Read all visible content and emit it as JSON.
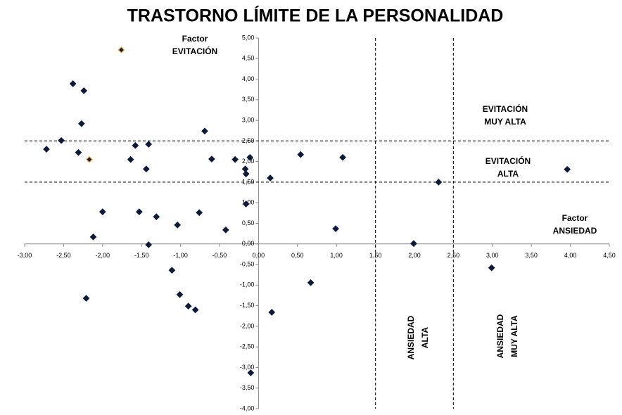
{
  "chart_data": {
    "type": "scatter",
    "title": "TRASTORNO LÍMITE DE LA PERSONALIDAD",
    "xlim": [
      -3,
      4.5
    ],
    "ylim": [
      -4,
      5
    ],
    "xticks": [
      {
        "value": -3,
        "label": "-3,00"
      },
      {
        "value": -2.5,
        "label": "-2,50"
      },
      {
        "value": -2,
        "label": "-2,00"
      },
      {
        "value": -1.5,
        "label": "-1,50"
      },
      {
        "value": -1,
        "label": "-1,00"
      },
      {
        "value": -0.5,
        "label": "-0,50"
      },
      {
        "value": 0,
        "label": "0,00"
      },
      {
        "value": 0.5,
        "label": "0,50"
      },
      {
        "value": 1,
        "label": "1,00"
      },
      {
        "value": 1.5,
        "label": "1,50"
      },
      {
        "value": 2,
        "label": "2,00"
      },
      {
        "value": 2.5,
        "label": "2,50"
      },
      {
        "value": 3,
        "label": "3,00"
      },
      {
        "value": 3.5,
        "label": "3,50"
      },
      {
        "value": 4,
        "label": "4,00"
      },
      {
        "value": 4.5,
        "label": "4,50"
      }
    ],
    "yticks": [
      {
        "value": 5,
        "label": "5,00"
      },
      {
        "value": 4.5,
        "label": "4,50"
      },
      {
        "value": 4,
        "label": "4,00"
      },
      {
        "value": 3.5,
        "label": "3,50"
      },
      {
        "value": 3,
        "label": "3,00"
      },
      {
        "value": 2.5,
        "label": "2,50"
      },
      {
        "value": 2,
        "label": "2,00"
      },
      {
        "value": 1.5,
        "label": "1,50"
      },
      {
        "value": 1,
        "label": "1,00"
      },
      {
        "value": 0.5,
        "label": "0,50"
      },
      {
        "value": 0,
        "label": "0,00"
      },
      {
        "value": -0.5,
        "label": "-0,50"
      },
      {
        "value": -1,
        "label": "-1,00"
      },
      {
        "value": -1.5,
        "label": "-1,50"
      },
      {
        "value": -2,
        "label": "-2,00"
      },
      {
        "value": -2.5,
        "label": "-2,50"
      },
      {
        "value": -3,
        "label": "-3,00"
      },
      {
        "value": -3.5,
        "label": "-3,50"
      },
      {
        "value": -4,
        "label": "-4,00"
      }
    ],
    "hlines": [
      2.5,
      1.5
    ],
    "vlines": [
      1.5,
      2.5
    ],
    "series": [
      {
        "color": "#0d1a3a",
        "edgecolor": "#0d1a3a",
        "x": [
          -2.38,
          -2.24,
          -2.27,
          -0.69,
          -2.53,
          -2.72,
          -2.31,
          -1.58,
          -1.41,
          -1.64,
          -1.44,
          -0.6,
          -0.3,
          -0.11,
          -0.17,
          -0.16,
          0.15,
          0.54,
          1.08,
          2.31,
          3.96,
          -0.16,
          -2.0,
          -1.53,
          -0.76,
          -1.31,
          -1.04,
          -0.42,
          -2.12,
          -1.41,
          0.99,
          1.99,
          -1.11,
          2.99,
          0.67,
          -1.01,
          -2.21,
          -0.9,
          -0.81,
          0.17,
          -0.1
        ],
        "values": [
          3.89,
          3.72,
          2.92,
          2.74,
          2.51,
          2.3,
          2.22,
          2.39,
          2.42,
          2.05,
          1.82,
          2.06,
          2.05,
          2.1,
          1.82,
          1.7,
          1.6,
          2.17,
          2.1,
          1.5,
          1.81,
          0.97,
          0.78,
          0.78,
          0.76,
          0.66,
          0.46,
          0.34,
          0.17,
          -0.02,
          0.37,
          0.01,
          -0.64,
          -0.58,
          -0.94,
          -1.23,
          -1.32,
          -1.51,
          -1.6,
          -1.66,
          -3.13
        ]
      },
      {
        "color": "#0d1a3a",
        "edgecolor": "#f0a030",
        "x": [
          -1.76,
          -2.17
        ],
        "values": [
          4.71,
          2.05
        ]
      }
    ],
    "annotations": [
      [
        "Factor",
        "EVITACIÓN"
      ],
      [
        "EVITACIÓN",
        "MUY ALTA"
      ],
      [
        "EVITACIÓN",
        "ALTA"
      ],
      [
        "Factor",
        "ANSIEDAD"
      ],
      [
        "ANSIEDAD",
        "ALTA"
      ],
      [
        "ANSIEDAD",
        "MUY ALTA"
      ]
    ]
  }
}
